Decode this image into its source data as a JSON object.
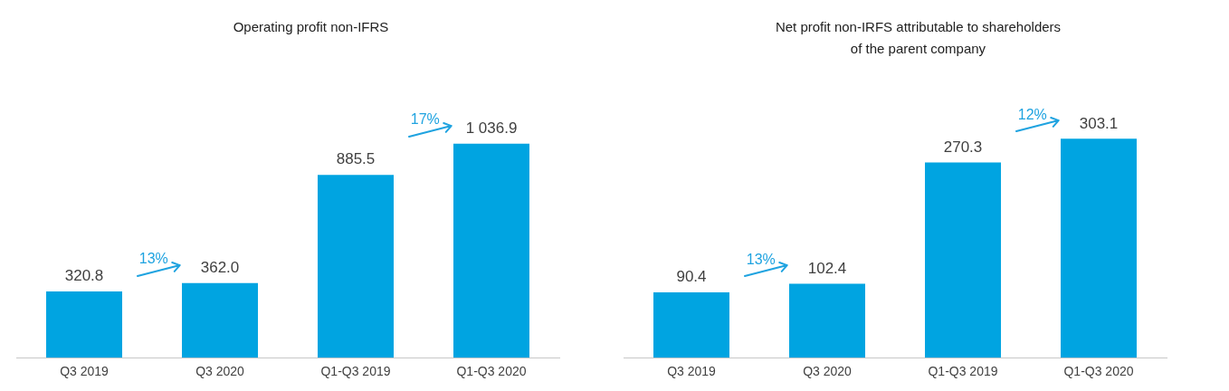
{
  "chart_data": [
    {
      "type": "bar",
      "title": "Operating profit non-IFRS",
      "categories": [
        "Q3 2019",
        "Q3 2020",
        "Q1-Q3 2019",
        "Q1-Q3 2020"
      ],
      "values": [
        320.8,
        362.0,
        885.5,
        1036.9
      ],
      "value_labels": [
        "320.8",
        "362.0",
        "885.5",
        "1 036.9"
      ],
      "color": "#00a4e1",
      "annotations": [
        "13%",
        "17%"
      ],
      "grid": false,
      "legend": false
    },
    {
      "type": "bar",
      "title": "Net profit non-IRFS attributable to shareholders of the parent company",
      "categories": [
        "Q3 2019",
        "Q3 2020",
        "Q1-Q3 2019",
        "Q1-Q3 2020"
      ],
      "values": [
        90.4,
        102.4,
        270.3,
        303.1
      ],
      "value_labels": [
        "90.4",
        "102.4",
        "270.3",
        "303.1"
      ],
      "color": "#00a4e1",
      "annotations": [
        "13%",
        "12%"
      ],
      "grid": false,
      "legend": false
    }
  ]
}
